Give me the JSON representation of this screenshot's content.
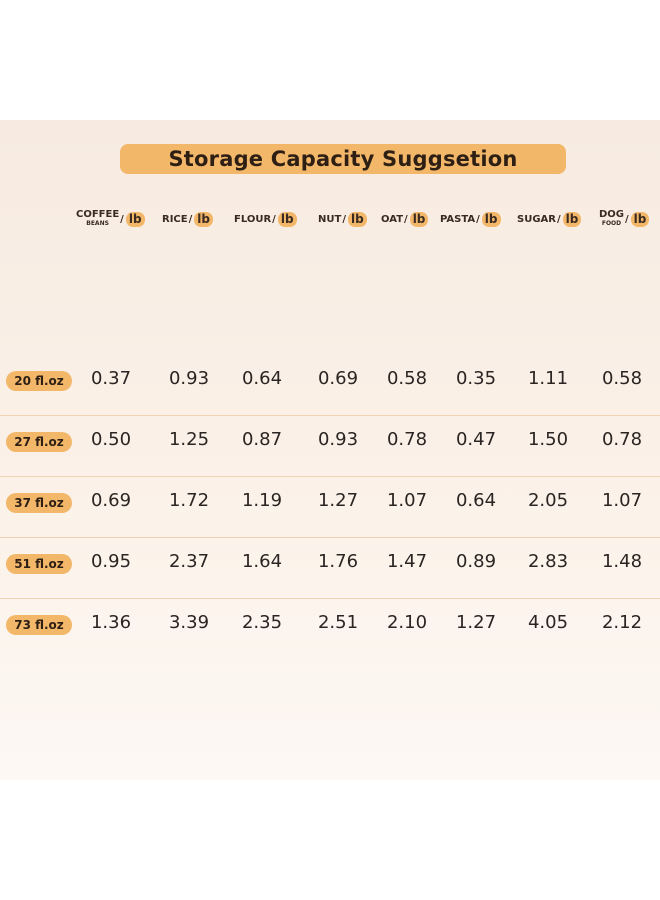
{
  "title": "Storage Capacity Suggsetion",
  "unit": "lb",
  "columns": [
    {
      "label": "COFFEE",
      "sub": "BEANS",
      "sep": "/"
    },
    {
      "label": "RICE",
      "sep": " /"
    },
    {
      "label": "FLOUR",
      "sep": "/"
    },
    {
      "label": "NUT",
      "sep": "/"
    },
    {
      "label": "OAT",
      "sep": "/"
    },
    {
      "label": "PASTA",
      "sep": "/"
    },
    {
      "label": "SUGAR",
      "sep": "/"
    },
    {
      "label": "DOG",
      "sub": "FOOD",
      "sep": "/"
    }
  ],
  "rows": [
    {
      "size": "20 fl.oz",
      "values": [
        "0.37",
        "0.93",
        "0.64",
        "0.69",
        "0.58",
        "0.35",
        "1.11",
        "0.58"
      ]
    },
    {
      "size": "27 fl.oz",
      "values": [
        "0.50",
        "1.25",
        "0.87",
        "0.93",
        "0.78",
        "0.47",
        "1.50",
        "0.78"
      ]
    },
    {
      "size": "37 fl.oz",
      "values": [
        "0.69",
        "1.72",
        "1.19",
        "1.27",
        "1.07",
        "0.64",
        "2.05",
        "1.07"
      ]
    },
    {
      "size": "51 fl.oz",
      "values": [
        "0.95",
        "2.37",
        "1.64",
        "1.76",
        "1.47",
        "0.89",
        "2.83",
        "1.48"
      ]
    },
    {
      "size": "73 fl.oz",
      "values": [
        "1.36",
        "3.39",
        "2.35",
        "2.51",
        "2.10",
        "1.27",
        "4.05",
        "2.12"
      ]
    }
  ]
}
